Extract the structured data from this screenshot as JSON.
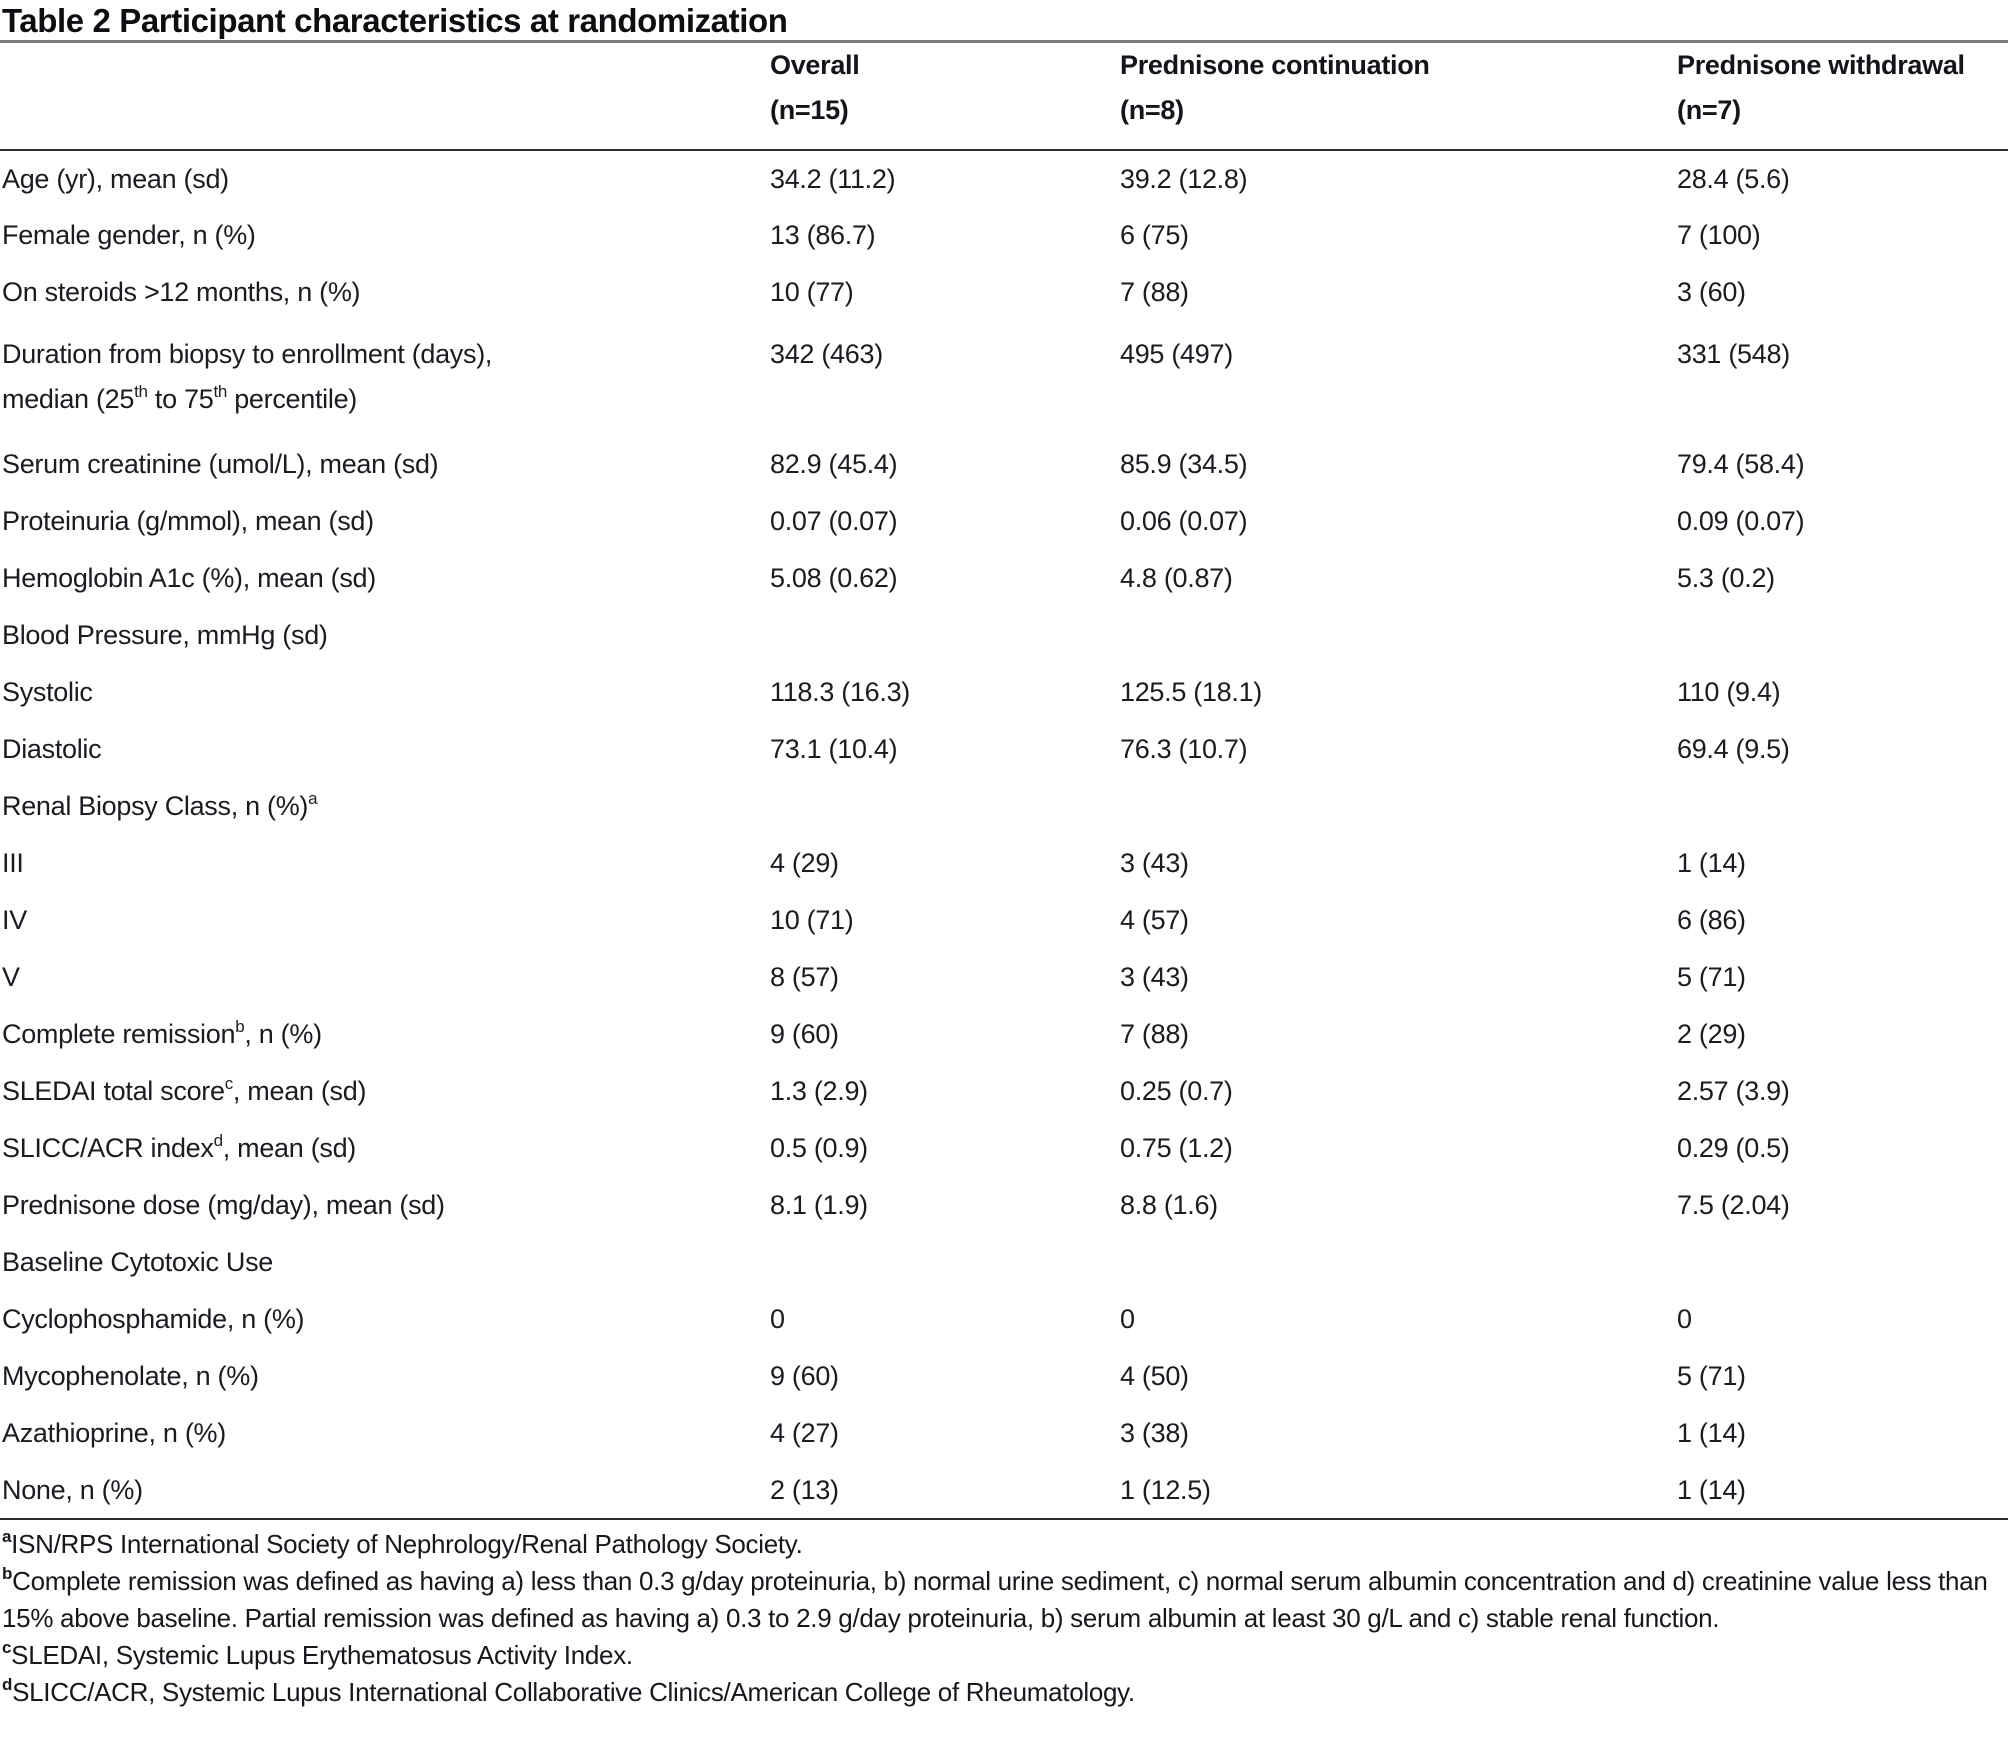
{
  "title": "Table 2 Participant characteristics at randomization",
  "table": {
    "columns": [
      {
        "label": "",
        "sub": ""
      },
      {
        "label": "Overall",
        "sub": "(n=15)"
      },
      {
        "label": "Prednisone continuation",
        "sub": "(n=8)"
      },
      {
        "label": "Prednisone withdrawal",
        "sub": "(n=7)"
      }
    ],
    "rows": [
      {
        "label": [
          {
            "t": "Age (yr), mean (sd)"
          }
        ],
        "values": [
          "34.2 (11.2)",
          "39.2 (12.8)",
          "28.4 (5.6)"
        ]
      },
      {
        "label": [
          {
            "t": "Female gender, n (%)"
          }
        ],
        "values": [
          "13 (86.7)",
          "6 (75)",
          "7 (100)"
        ]
      },
      {
        "label": [
          {
            "t": "On steroids >12 months, n (%)"
          }
        ],
        "values": [
          "10 (77)",
          "7 (88)",
          "3 (60)"
        ]
      },
      {
        "label": [
          {
            "t": "Duration from biopsy to enrollment (days),"
          },
          {
            "br": true
          },
          {
            "t": "median (25"
          },
          {
            "t": "th",
            "sup": true
          },
          {
            "t": " to 75"
          },
          {
            "t": "th",
            "sup": true
          },
          {
            "t": " percentile)"
          }
        ],
        "values": [
          "342 (463)",
          "495 (497)",
          "331 (548)"
        ],
        "tall": true
      },
      {
        "label": [
          {
            "t": "Serum creatinine (umol/L), mean (sd)"
          }
        ],
        "values": [
          "82.9 (45.4)",
          "85.9 (34.5)",
          "79.4 (58.4)"
        ]
      },
      {
        "label": [
          {
            "t": "Proteinuria (g/mmol), mean (sd)"
          }
        ],
        "values": [
          "0.07 (0.07)",
          "0.06 (0.07)",
          "0.09 (0.07)"
        ]
      },
      {
        "label": [
          {
            "t": "Hemoglobin A1c (%), mean (sd)"
          }
        ],
        "values": [
          "5.08 (0.62)",
          "4.8 (0.87)",
          "5.3 (0.2)"
        ]
      },
      {
        "label": [
          {
            "t": "Blood Pressure, mmHg (sd)"
          }
        ],
        "values": [
          "",
          "",
          ""
        ]
      },
      {
        "label": [
          {
            "t": "Systolic"
          }
        ],
        "values": [
          "118.3 (16.3)",
          "125.5 (18.1)",
          "110 (9.4)"
        ]
      },
      {
        "label": [
          {
            "t": "Diastolic"
          }
        ],
        "values": [
          "73.1 (10.4)",
          "76.3 (10.7)",
          "69.4 (9.5)"
        ]
      },
      {
        "label": [
          {
            "t": "Renal Biopsy Class, n (%)"
          },
          {
            "t": "a",
            "sup": true
          }
        ],
        "values": [
          "",
          "",
          ""
        ]
      },
      {
        "label": [
          {
            "t": "III"
          }
        ],
        "values": [
          "4 (29)",
          "3 (43)",
          "1 (14)"
        ]
      },
      {
        "label": [
          {
            "t": "IV"
          }
        ],
        "values": [
          "10 (71)",
          "4 (57)",
          "6 (86)"
        ]
      },
      {
        "label": [
          {
            "t": "V"
          }
        ],
        "values": [
          "8 (57)",
          "3 (43)",
          "5 (71)"
        ]
      },
      {
        "label": [
          {
            "t": "Complete remission"
          },
          {
            "t": "b",
            "sup": true
          },
          {
            "t": ", n (%)"
          }
        ],
        "values": [
          "9 (60)",
          "7 (88)",
          "2 (29)"
        ]
      },
      {
        "label": [
          {
            "t": "SLEDAI total score"
          },
          {
            "t": "c",
            "sup": true
          },
          {
            "t": ", mean (sd)"
          }
        ],
        "values": [
          "1.3 (2.9)",
          "0.25 (0.7)",
          "2.57 (3.9)"
        ]
      },
      {
        "label": [
          {
            "t": "SLICC/ACR index"
          },
          {
            "t": "d",
            "sup": true
          },
          {
            "t": ", mean (sd)"
          }
        ],
        "values": [
          "0.5 (0.9)",
          "0.75 (1.2)",
          "0.29 (0.5)"
        ]
      },
      {
        "label": [
          {
            "t": "Prednisone dose (mg/day), mean (sd)"
          }
        ],
        "values": [
          "8.1 (1.9)",
          "8.8 (1.6)",
          "7.5 (2.04)"
        ]
      },
      {
        "label": [
          {
            "t": "Baseline Cytotoxic Use"
          }
        ],
        "values": [
          "",
          "",
          ""
        ]
      },
      {
        "label": [
          {
            "t": "Cyclophosphamide, n (%)"
          }
        ],
        "values": [
          "0",
          "0",
          "0"
        ]
      },
      {
        "label": [
          {
            "t": "Mycophenolate, n (%)"
          }
        ],
        "values": [
          "9 (60)",
          "4 (50)",
          "5 (71)"
        ]
      },
      {
        "label": [
          {
            "t": "Azathioprine, n (%)"
          }
        ],
        "values": [
          "4 (27)",
          "3 (38)",
          "1 (14)"
        ]
      },
      {
        "label": [
          {
            "t": "None, n (%)"
          }
        ],
        "values": [
          "2 (13)",
          "1 (12.5)",
          "1 (14)"
        ]
      }
    ]
  },
  "footnotes": [
    {
      "marker": "a",
      "text": "ISN/RPS International Society of Nephrology/Renal Pathology Society."
    },
    {
      "marker": "b",
      "text": "Complete remission was defined as having a) less than 0.3 g/day proteinuria, b) normal urine sediment, c) normal serum albumin concentration and d) creatinine value less than 15% above baseline. Partial remission was defined as having a) 0.3 to 2.9 g/day proteinuria, b) serum albumin at least 30 g/L and c) stable renal function."
    },
    {
      "marker": "c",
      "text": "SLEDAI, Systemic Lupus Erythematosus Activity Index."
    },
    {
      "marker": "d",
      "text": "SLICC/ACR, Systemic Lupus International Collaborative Clinics/American College of Rheumatology."
    }
  ]
}
